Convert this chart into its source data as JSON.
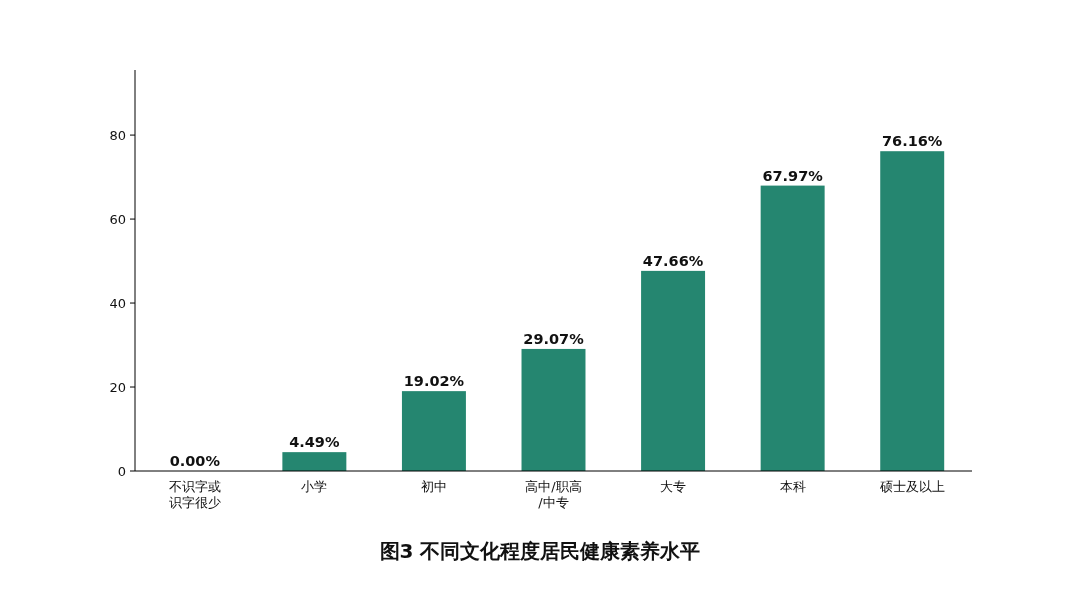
{
  "chart_data": {
    "type": "bar",
    "title": "图3  不同文化程度居民健康素养水平",
    "categories": [
      "不识字或识字很少",
      "小学",
      "初中",
      "高中/职高/中专",
      "大专",
      "本科",
      "硕士及以上"
    ],
    "values": [
      0.0,
      4.49,
      19.02,
      29.07,
      47.66,
      67.97,
      76.16
    ],
    "value_labels": [
      "0.00%",
      "4.49%",
      "19.02%",
      "29.07%",
      "47.66%",
      "67.97%",
      "76.16%"
    ],
    "color": "#258670",
    "ylim": [
      0,
      95.5
    ],
    "yticks": [
      0,
      20,
      40,
      60,
      80
    ],
    "grid": false
  }
}
